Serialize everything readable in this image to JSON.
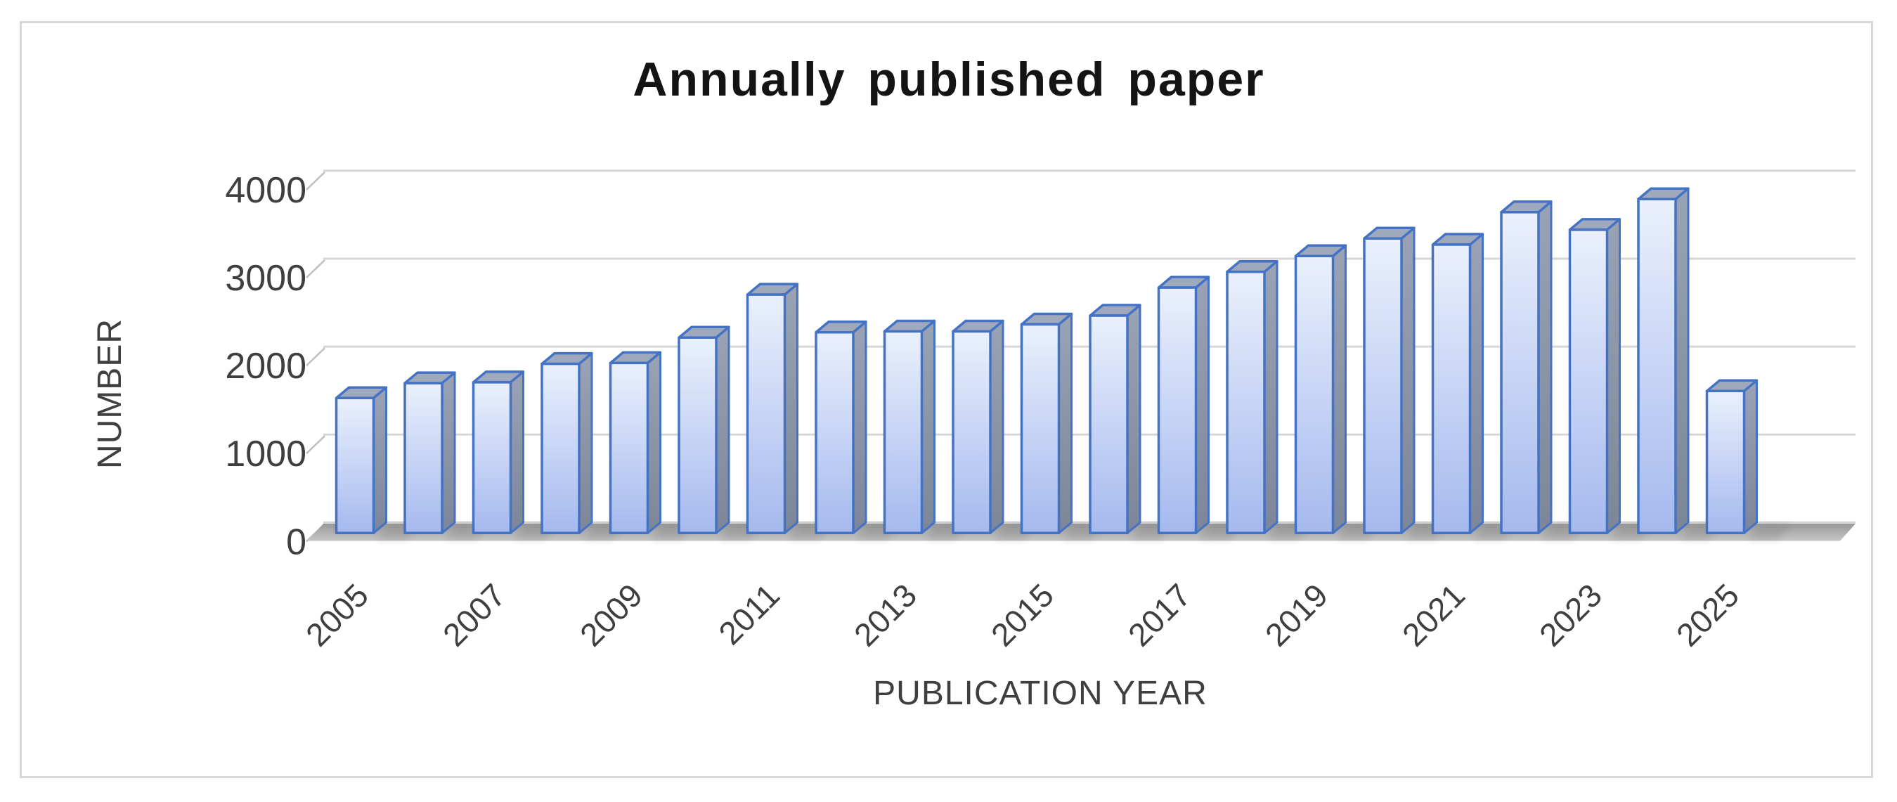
{
  "header": {
    "title": "Annually published paper"
  },
  "axes": {
    "y_title": "NUMBER",
    "x_title": "PUBLICATION YEAR",
    "y_tick_labels": [
      "0",
      "1000",
      "2000",
      "3000",
      "4000"
    ],
    "x_tick_labels": [
      "2005",
      "2007",
      "2009",
      "2011",
      "2013",
      "2015",
      "2017",
      "2019",
      "2021",
      "2023",
      "2025"
    ]
  },
  "chart_data": {
    "type": "bar",
    "style": "3d-column",
    "title": "Annually published paper",
    "xlabel": "PUBLICATION YEAR",
    "ylabel": "NUMBER",
    "ylim": [
      0,
      4000
    ],
    "y_ticks": [
      0,
      1000,
      2000,
      3000,
      4000
    ],
    "grid": true,
    "legend": "none",
    "categories": [
      2005,
      2006,
      2007,
      2008,
      2009,
      2010,
      2011,
      2012,
      2013,
      2014,
      2015,
      2016,
      2017,
      2018,
      2019,
      2020,
      2021,
      2022,
      2023,
      2024,
      2025
    ],
    "values": [
      1540,
      1710,
      1720,
      1930,
      1940,
      2230,
      2720,
      2290,
      2300,
      2300,
      2380,
      2480,
      2800,
      2980,
      3160,
      3360,
      3290,
      3660,
      3460,
      3810,
      1620
    ],
    "x_label_every": 2,
    "colors": {
      "bar_front_top": "#eaf0fc",
      "bar_front_bottom": "#a5b9ee",
      "bar_side_top": "#9aa3b6",
      "bar_side_bottom": "#7d8698",
      "bar_top_face": "#9fa9bd",
      "bar_border": "#4472c4",
      "gridline": "#d6d6d6",
      "tick": "#bfbfbf",
      "floor_back": "#989898",
      "floor_front": "#c6c6c6",
      "shadow": "#888888",
      "text": "#3f3f3f",
      "title_text": "#141414",
      "outer_border": "#d7d7d7"
    }
  }
}
